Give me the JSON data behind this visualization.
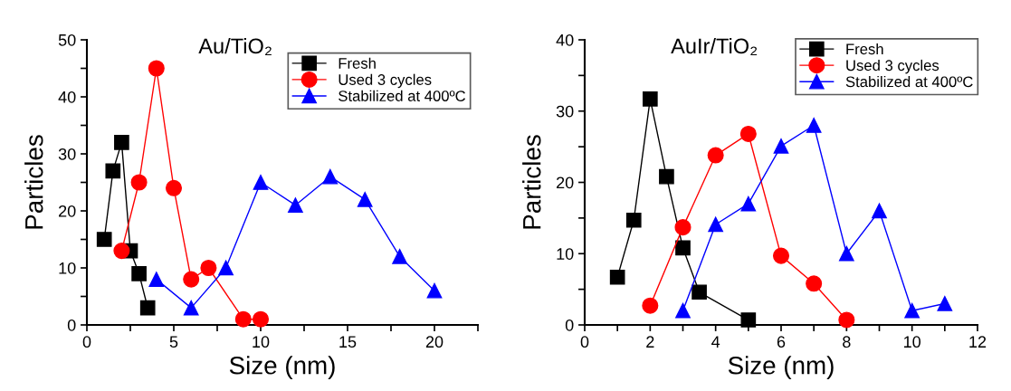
{
  "chart_data": [
    {
      "type": "line",
      "title": "Au/TiO₂",
      "xlabel": "Size (nm)",
      "ylabel": "Particles",
      "xlim": [
        0,
        22.5
      ],
      "xticks": [
        0,
        {
          "value": 2.5,
          "label": null
        },
        5,
        {
          "value": 7.5,
          "label": null
        },
        10,
        {
          "value": 12.5,
          "label": null
        },
        15,
        {
          "value": 17.5,
          "label": null
        },
        20,
        {
          "value": 22.5,
          "label": null
        }
      ],
      "ylim": [
        0,
        50
      ],
      "yticks": [
        0,
        {
          "value": 5,
          "label": null
        },
        10,
        {
          "value": 15,
          "label": null
        },
        20,
        {
          "value": 25,
          "label": null
        },
        30,
        {
          "value": 35,
          "label": null
        },
        40,
        {
          "value": 45,
          "label": null
        },
        50
      ],
      "legend": "top right",
      "line_style": "solid",
      "grid": false,
      "series": [
        {
          "name": "Fresh",
          "color": "#000000",
          "marker": "square",
          "x": [
            1,
            1.5,
            2,
            2.5,
            3,
            3.5
          ],
          "values": [
            15,
            27,
            32,
            13,
            9,
            3
          ]
        },
        {
          "name": "Used 3 cycles",
          "color": "#ff0000",
          "marker": "circle",
          "x": [
            2,
            3,
            4,
            5,
            6,
            7,
            9,
            10
          ],
          "values": [
            13,
            25,
            45,
            24,
            8,
            10,
            1,
            1
          ]
        },
        {
          "name": "Stabilized at 400ºC",
          "color": "#0000ff",
          "marker": "triangle",
          "x": [
            4,
            6,
            8,
            10,
            12,
            14,
            16,
            18,
            20
          ],
          "values": [
            8,
            3,
            10,
            25,
            21,
            26,
            22,
            12,
            6
          ]
        }
      ]
    },
    {
      "type": "line",
      "title": "AuIr/TiO₂",
      "xlabel": "Size (nm)",
      "ylabel": "Particles",
      "xlim": [
        0,
        12
      ],
      "xticks": [
        0,
        {
          "value": 1,
          "label": null
        },
        2,
        {
          "value": 3,
          "label": null
        },
        4,
        {
          "value": 5,
          "label": null
        },
        6,
        {
          "value": 7,
          "label": null
        },
        8,
        {
          "value": 9,
          "label": null
        },
        10,
        {
          "value": 11,
          "label": null
        },
        12
      ],
      "ylim": [
        0,
        40
      ],
      "yticks": [
        0,
        {
          "value": 5,
          "label": null
        },
        10,
        {
          "value": 15,
          "label": null
        },
        20,
        {
          "value": 25,
          "label": null
        },
        30,
        {
          "value": 35,
          "label": null
        },
        40
      ],
      "legend": "top right",
      "line_style": "solid",
      "grid": false,
      "series": [
        {
          "name": "Fresh",
          "color": "#000000",
          "marker": "square",
          "x": [
            1,
            1.5,
            2,
            2.5,
            3,
            3.5,
            5
          ],
          "values": [
            6.7,
            14.7,
            31.7,
            20.8,
            10.8,
            4.6,
            0.7
          ]
        },
        {
          "name": "Used 3 cycles",
          "color": "#ff0000",
          "marker": "circle",
          "x": [
            2,
            3,
            4,
            5,
            6,
            7,
            8
          ],
          "values": [
            2.7,
            13.7,
            23.8,
            26.8,
            9.7,
            5.8,
            0.7
          ]
        },
        {
          "name": "Stabilized at 400ºC",
          "color": "#0000ff",
          "marker": "triangle",
          "x": [
            3,
            4,
            5,
            6,
            7,
            8,
            9,
            10,
            11
          ],
          "values": [
            2,
            14.1,
            17,
            25.1,
            28,
            10,
            16,
            2,
            3
          ]
        }
      ]
    }
  ]
}
